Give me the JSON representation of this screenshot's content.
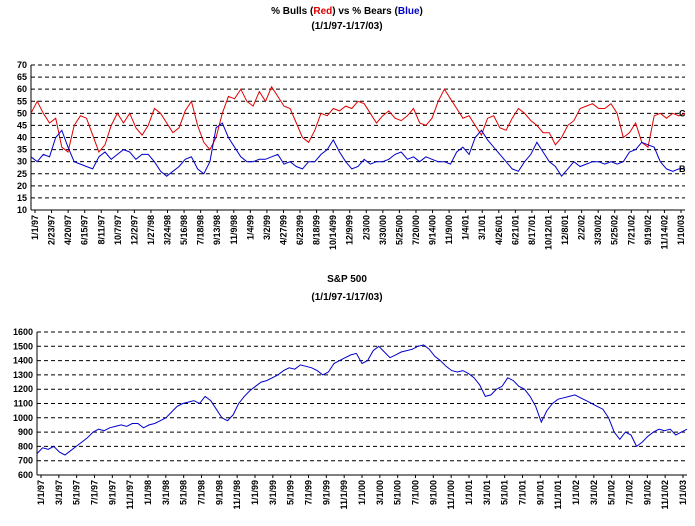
{
  "chart_data": [
    {
      "type": "line",
      "title_parts": [
        {
          "text": "% Bulls (",
          "color": "#000000"
        },
        {
          "text": "Red",
          "color": "#e00000"
        },
        {
          "text": ") vs % Bears (",
          "color": "#000000"
        },
        {
          "text": "Blue",
          "color": "#0000cc"
        },
        {
          "text": ")",
          "color": "#000000"
        }
      ],
      "subtitle": "(1/1/97-1/17/03)",
      "ylim": [
        10,
        70
      ],
      "yticks": [
        10,
        15,
        20,
        25,
        30,
        35,
        40,
        45,
        50,
        55,
        60,
        65,
        70
      ],
      "grid": true,
      "xticks": [
        "1/1/97",
        "2/23/97",
        "4/20/97",
        "6/15/97",
        "8/11/97",
        "10/7/97",
        "12/2/97",
        "1/27/98",
        "3/24/98",
        "5/16/98",
        "7/18/98",
        "9/13/98",
        "11/9/98",
        "1/4/99",
        "3/2/99",
        "4/27/99",
        "6/23/99",
        "8/18/99",
        "10/14/99",
        "12/9/99",
        "2/3/00",
        "3/30/00",
        "5/25/00",
        "7/20/00",
        "9/14/00",
        "11/9/00",
        "1/4/01",
        "3/1/01",
        "4/26/01",
        "6/21/01",
        "8/17/01",
        "10/12/01",
        "12/8/01",
        "2/2/02",
        "3/30/02",
        "5/25/02",
        "7/21/02",
        "9/19/02",
        "11/14/02",
        "1/10/03"
      ],
      "annotations": [
        {
          "text": "C",
          "series": 0
        },
        {
          "text": "B",
          "series": 1
        }
      ],
      "series": [
        {
          "color": "#e00000",
          "values": [
            50,
            55,
            50,
            46,
            48,
            36,
            34,
            45,
            49,
            48,
            41,
            34,
            37,
            45,
            50,
            46,
            50,
            44,
            41,
            45,
            52,
            50,
            46,
            42,
            44,
            51,
            55,
            45,
            38,
            35,
            40,
            50,
            57,
            56,
            60,
            55,
            53,
            59,
            55,
            61,
            57,
            53,
            52,
            46,
            40,
            38,
            43,
            50,
            49,
            52,
            51,
            53,
            52,
            55,
            54,
            50,
            46,
            49,
            51,
            48,
            47,
            49,
            52,
            46,
            45,
            48,
            55,
            60,
            56,
            52,
            48,
            49,
            45,
            41,
            48,
            49,
            44,
            43,
            48,
            52,
            50,
            47,
            45,
            42,
            42,
            37,
            40,
            45,
            47,
            52,
            53,
            54,
            52,
            52,
            54,
            50,
            40,
            42,
            46,
            38,
            36,
            49,
            50,
            48,
            50,
            49,
            50
          ]
        },
        {
          "color": "#0000cc",
          "values": [
            32,
            30,
            33,
            32,
            40,
            43,
            36,
            30,
            29,
            28,
            27,
            32,
            34,
            31,
            33,
            35,
            34,
            31,
            33,
            33,
            30,
            26,
            24,
            26,
            28,
            31,
            32,
            27,
            25,
            30,
            44,
            46,
            40,
            36,
            32,
            30,
            30,
            31,
            31,
            32,
            33,
            29,
            30,
            28,
            27,
            30,
            30,
            33,
            35,
            39,
            34,
            30,
            27,
            28,
            31,
            29,
            30,
            30,
            31,
            33,
            34,
            31,
            32,
            30,
            32,
            31,
            30,
            30,
            29,
            34,
            36,
            33,
            40,
            43,
            39,
            36,
            33,
            30,
            27,
            26,
            30,
            33,
            38,
            34,
            30,
            28,
            24,
            27,
            30,
            28,
            29,
            30,
            30,
            29,
            30,
            29,
            30,
            34,
            35,
            38,
            37,
            36,
            30,
            27,
            26,
            27,
            27
          ]
        }
      ]
    },
    {
      "type": "line",
      "title": "S&P 500",
      "subtitle": "(1/1/97-1/17/03)",
      "ylim": [
        600,
        1600
      ],
      "yticks": [
        600,
        700,
        800,
        900,
        1000,
        1100,
        1200,
        1300,
        1400,
        1500,
        1600
      ],
      "grid": true,
      "xticks": [
        "1/1/97",
        "3/1/97",
        "5/1/97",
        "7/1/97",
        "9/1/97",
        "11/1/97",
        "1/1/98",
        "3/1/98",
        "5/1/98",
        "7/1/98",
        "9/1/98",
        "11/1/98",
        "1/1/99",
        "3/1/99",
        "5/1/99",
        "7/1/99",
        "9/1/99",
        "11/1/99",
        "1/1/00",
        "3/1/00",
        "5/1/00",
        "7/1/00",
        "9/1/00",
        "11/1/00",
        "1/1/01",
        "3/1/01",
        "5/1/01",
        "7/1/01",
        "9/1/01",
        "11/1/01",
        "1/1/02",
        "3/1/02",
        "5/1/02",
        "7/1/02",
        "9/1/02",
        "11/1/02",
        "1/1/03"
      ],
      "series": [
        {
          "color": "#0000cc",
          "values": [
            750,
            790,
            780,
            800,
            760,
            740,
            770,
            800,
            830,
            860,
            900,
            920,
            910,
            930,
            940,
            950,
            940,
            960,
            960,
            930,
            950,
            960,
            980,
            1000,
            1040,
            1080,
            1100,
            1110,
            1120,
            1100,
            1150,
            1120,
            1060,
            1000,
            980,
            1020,
            1100,
            1150,
            1190,
            1220,
            1250,
            1260,
            1280,
            1300,
            1330,
            1350,
            1340,
            1370,
            1360,
            1350,
            1330,
            1300,
            1320,
            1380,
            1400,
            1420,
            1440,
            1450,
            1380,
            1400,
            1470,
            1500,
            1460,
            1420,
            1440,
            1460,
            1470,
            1480,
            1500,
            1510,
            1480,
            1430,
            1400,
            1360,
            1330,
            1320,
            1330,
            1310,
            1280,
            1230,
            1150,
            1160,
            1200,
            1220,
            1280,
            1260,
            1220,
            1200,
            1150,
            1080,
            970,
            1050,
            1100,
            1130,
            1140,
            1150,
            1160,
            1140,
            1120,
            1100,
            1080,
            1060,
            1000,
            900,
            850,
            900,
            880,
            800,
            830,
            870,
            900,
            920,
            910,
            920,
            880,
            900,
            920
          ]
        }
      ]
    }
  ]
}
